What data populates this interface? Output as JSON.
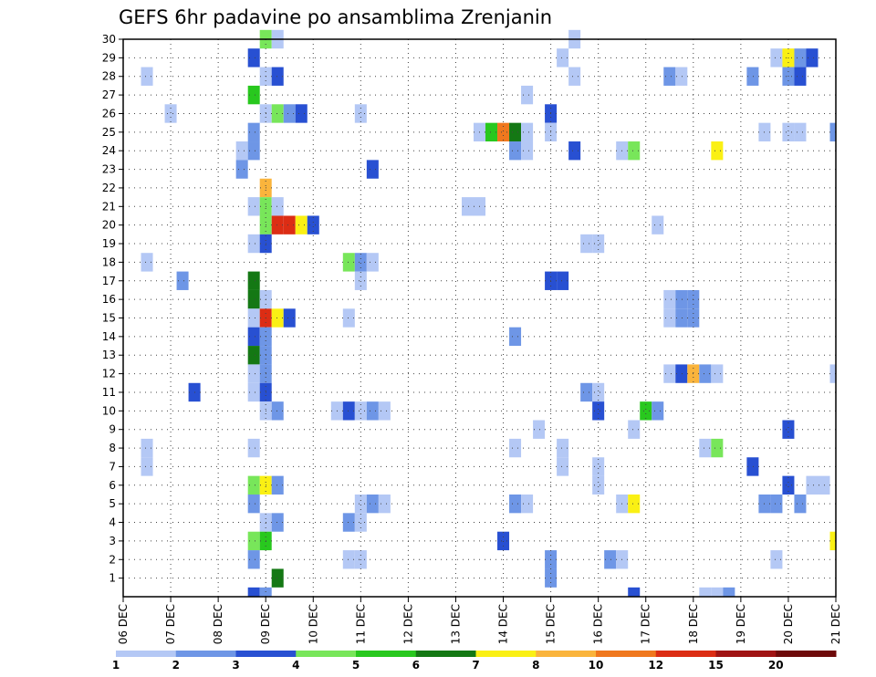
{
  "chart_data": {
    "type": "heatmap",
    "title": "GEFS 6hr padavine po ansamblima Zrenjanin",
    "xlabel": "",
    "ylabel": "",
    "x_tick_labels": [
      "06 DEC",
      "07 DEC",
      "08 DEC",
      "09 DEC",
      "10 DEC",
      "11 DEC",
      "12 DEC",
      "13 DEC",
      "14 DEC",
      "15 DEC",
      "16 DEC",
      "17 DEC",
      "18 DEC",
      "19 DEC",
      "20 DEC",
      "21 DEC"
    ],
    "y_tick_labels": [
      "1",
      "2",
      "3",
      "4",
      "5",
      "6",
      "7",
      "8",
      "9",
      "10",
      "11",
      "12",
      "13",
      "14",
      "15",
      "16",
      "17",
      "18",
      "19",
      "20",
      "21",
      "22",
      "23",
      "24",
      "25",
      "26",
      "27",
      "28",
      "29",
      "30"
    ],
    "x_range_steps": [
      0,
      60
    ],
    "y_range_members": [
      0,
      30
    ],
    "grid": true,
    "colorbar": {
      "position": "bottom",
      "colors": [
        "#b4c8f5",
        "#6e96e6",
        "#2850d2",
        "#78e65a",
        "#28c81e",
        "#147814",
        "#faf014",
        "#fab43c",
        "#f0781e",
        "#dc2d14",
        "#a01414",
        "#6e0a0a"
      ],
      "labels": [
        "1",
        "2",
        "3",
        "4",
        "5",
        "6",
        "7",
        "8",
        "10",
        "12",
        "15",
        "20"
      ]
    },
    "levels_note": "cells: [member, 6hr step from 06 DEC 00Z, color class index into colorbar]",
    "cells": [
      [
        30,
        12,
        3
      ],
      [
        30,
        13,
        0
      ],
      [
        30,
        38,
        0
      ],
      [
        29,
        11,
        2
      ],
      [
        29,
        37,
        0
      ],
      [
        29,
        55,
        0
      ],
      [
        29,
        56,
        6
      ],
      [
        29,
        57,
        1
      ],
      [
        29,
        58,
        2
      ],
      [
        28,
        2,
        0
      ],
      [
        28,
        12,
        0
      ],
      [
        28,
        13,
        2
      ],
      [
        28,
        38,
        0
      ],
      [
        28,
        46,
        1
      ],
      [
        28,
        47,
        0
      ],
      [
        28,
        53,
        1
      ],
      [
        28,
        56,
        1
      ],
      [
        28,
        57,
        2
      ],
      [
        27,
        11,
        4
      ],
      [
        27,
        34,
        0
      ],
      [
        26,
        4,
        0
      ],
      [
        26,
        12,
        0
      ],
      [
        26,
        13,
        3
      ],
      [
        26,
        14,
        1
      ],
      [
        26,
        15,
        2
      ],
      [
        26,
        20,
        0
      ],
      [
        26,
        36,
        2
      ],
      [
        25,
        11,
        1
      ],
      [
        25,
        30,
        0
      ],
      [
        25,
        31,
        4
      ],
      [
        25,
        32,
        8
      ],
      [
        25,
        33,
        5
      ],
      [
        25,
        34,
        0
      ],
      [
        25,
        36,
        0
      ],
      [
        25,
        54,
        0
      ],
      [
        25,
        56,
        0
      ],
      [
        25,
        57,
        0
      ],
      [
        25,
        60,
        1
      ],
      [
        24,
        10,
        0
      ],
      [
        24,
        11,
        1
      ],
      [
        24,
        33,
        1
      ],
      [
        24,
        34,
        0
      ],
      [
        24,
        38,
        2
      ],
      [
        24,
        42,
        0
      ],
      [
        24,
        43,
        3
      ],
      [
        24,
        50,
        6
      ],
      [
        23,
        10,
        1
      ],
      [
        23,
        21,
        2
      ],
      [
        22,
        12,
        7
      ],
      [
        21,
        11,
        0
      ],
      [
        21,
        12,
        3
      ],
      [
        21,
        13,
        0
      ],
      [
        21,
        29,
        0
      ],
      [
        21,
        30,
        0
      ],
      [
        20,
        12,
        3
      ],
      [
        20,
        13,
        9
      ],
      [
        20,
        14,
        9
      ],
      [
        20,
        15,
        6
      ],
      [
        20,
        16,
        2
      ],
      [
        20,
        45,
        0
      ],
      [
        19,
        11,
        0
      ],
      [
        19,
        12,
        2
      ],
      [
        19,
        39,
        0
      ],
      [
        19,
        40,
        0
      ],
      [
        18,
        2,
        0
      ],
      [
        18,
        19,
        3
      ],
      [
        18,
        20,
        1
      ],
      [
        18,
        21,
        0
      ],
      [
        17,
        5,
        1
      ],
      [
        17,
        11,
        5
      ],
      [
        17,
        20,
        0
      ],
      [
        17,
        36,
        2
      ],
      [
        17,
        37,
        2
      ],
      [
        16,
        11,
        5
      ],
      [
        16,
        12,
        0
      ],
      [
        16,
        46,
        0
      ],
      [
        16,
        47,
        1
      ],
      [
        16,
        48,
        1
      ],
      [
        15,
        11,
        0
      ],
      [
        15,
        12,
        9
      ],
      [
        15,
        13,
        6
      ],
      [
        15,
        14,
        2
      ],
      [
        15,
        19,
        0
      ],
      [
        15,
        46,
        0
      ],
      [
        15,
        47,
        1
      ],
      [
        15,
        48,
        1
      ],
      [
        14,
        11,
        2
      ],
      [
        14,
        12,
        1
      ],
      [
        14,
        33,
        1
      ],
      [
        13,
        11,
        5
      ],
      [
        13,
        12,
        1
      ],
      [
        12,
        11,
        0
      ],
      [
        12,
        12,
        1
      ],
      [
        12,
        46,
        0
      ],
      [
        12,
        47,
        2
      ],
      [
        12,
        48,
        7
      ],
      [
        12,
        49,
        1
      ],
      [
        12,
        50,
        0
      ],
      [
        12,
        60,
        0
      ],
      [
        11,
        6,
        2
      ],
      [
        11,
        11,
        0
      ],
      [
        11,
        12,
        2
      ],
      [
        11,
        39,
        1
      ],
      [
        11,
        40,
        0
      ],
      [
        10,
        12,
        0
      ],
      [
        10,
        13,
        1
      ],
      [
        10,
        18,
        0
      ],
      [
        10,
        19,
        2
      ],
      [
        10,
        20,
        0
      ],
      [
        10,
        21,
        1
      ],
      [
        10,
        22,
        0
      ],
      [
        10,
        40,
        2
      ],
      [
        10,
        44,
        4
      ],
      [
        10,
        45,
        1
      ],
      [
        9,
        35,
        0
      ],
      [
        9,
        43,
        0
      ],
      [
        9,
        56,
        2
      ],
      [
        8,
        2,
        0
      ],
      [
        8,
        11,
        0
      ],
      [
        8,
        33,
        0
      ],
      [
        8,
        37,
        0
      ],
      [
        8,
        49,
        0
      ],
      [
        8,
        50,
        3
      ],
      [
        7,
        2,
        0
      ],
      [
        7,
        37,
        0
      ],
      [
        7,
        40,
        0
      ],
      [
        7,
        53,
        2
      ],
      [
        6,
        11,
        3
      ],
      [
        6,
        12,
        6
      ],
      [
        6,
        13,
        1
      ],
      [
        6,
        40,
        0
      ],
      [
        6,
        56,
        2
      ],
      [
        6,
        58,
        0
      ],
      [
        6,
        59,
        0
      ],
      [
        5,
        11,
        1
      ],
      [
        5,
        20,
        0
      ],
      [
        5,
        21,
        1
      ],
      [
        5,
        22,
        0
      ],
      [
        5,
        33,
        1
      ],
      [
        5,
        34,
        0
      ],
      [
        5,
        42,
        0
      ],
      [
        5,
        43,
        6
      ],
      [
        5,
        54,
        1
      ],
      [
        5,
        55,
        1
      ],
      [
        5,
        57,
        1
      ],
      [
        4,
        12,
        0
      ],
      [
        4,
        13,
        1
      ],
      [
        4,
        19,
        1
      ],
      [
        4,
        20,
        0
      ],
      [
        3,
        11,
        3
      ],
      [
        3,
        12,
        4
      ],
      [
        3,
        32,
        2
      ],
      [
        3,
        60,
        6
      ],
      [
        2,
        11,
        1
      ],
      [
        2,
        19,
        0
      ],
      [
        2,
        20,
        0
      ],
      [
        2,
        36,
        1
      ],
      [
        2,
        41,
        1
      ],
      [
        2,
        42,
        0
      ],
      [
        2,
        55,
        0
      ],
      [
        1,
        13,
        5
      ],
      [
        1,
        36,
        1
      ],
      [
        0,
        11,
        2
      ],
      [
        0,
        12,
        1
      ],
      [
        0,
        43,
        2
      ],
      [
        0,
        49,
        0
      ],
      [
        0,
        50,
        0
      ],
      [
        0,
        51,
        1
      ]
    ]
  }
}
